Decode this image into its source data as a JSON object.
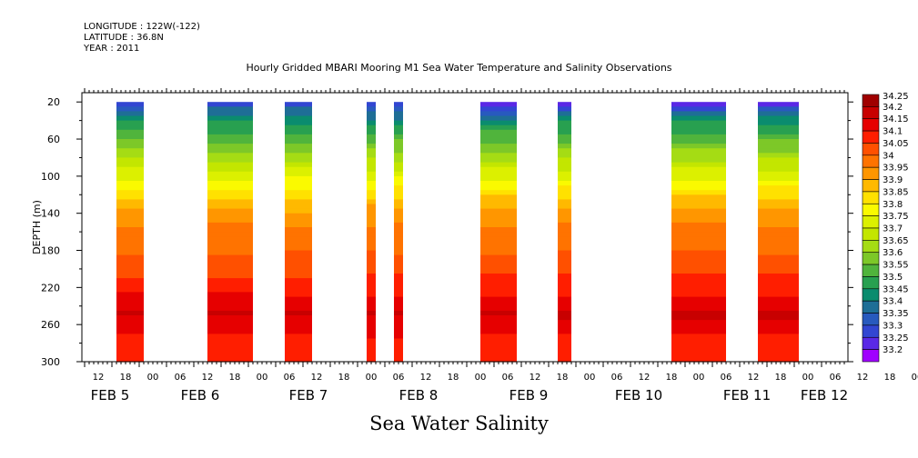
{
  "header": {
    "longitude": "LONGITUDE : 122W(-122)",
    "latitude": "LATITUDE : 36.8N",
    "year": "YEAR : 2011"
  },
  "footer": {
    "variable_title": "Sea Water Salinity"
  },
  "chart_data": {
    "type": "heatmap",
    "title": "Hourly Gridded MBARI Mooring M1 Sea Water Temperature and Salinity Observations",
    "xlabel": "",
    "ylabel": "DEPTH (m)",
    "ylim": [
      300,
      10
    ],
    "yticks": [
      20,
      60,
      100,
      140,
      180,
      220,
      260,
      300
    ],
    "x_hour_ticks": [
      "12",
      "18",
      "00",
      "06",
      "12",
      "18",
      "00",
      "06",
      "12",
      "18",
      "00",
      "06",
      "12",
      "18",
      "00",
      "06",
      "12",
      "18",
      "00",
      "06",
      "12",
      "18",
      "00",
      "06",
      "12",
      "18",
      "00",
      "06",
      "12",
      "18",
      "00",
      "06"
    ],
    "x_date_labels": [
      "FEB  5",
      "FEB  6",
      "FEB  7",
      "FEB  8",
      "FEB  9",
      "FEB 10",
      "FEB 11",
      "FEB 12"
    ],
    "colorbar_levels": [
      "34.25",
      "34.2",
      "34.15",
      "34.1",
      "34.05",
      "34",
      "33.95",
      "33.9",
      "33.85",
      "33.8",
      "33.75",
      "33.7",
      "33.65",
      "33.6",
      "33.55",
      "33.5",
      "33.45",
      "33.4",
      "33.35",
      "33.3",
      "33.25",
      "33.2"
    ],
    "colorbar_colors": [
      "#a00000",
      "#c80000",
      "#e60000",
      "#ff1e00",
      "#ff5000",
      "#ff7300",
      "#ff9600",
      "#ffb900",
      "#ffe100",
      "#fafa00",
      "#dcf000",
      "#c3e600",
      "#a5dc14",
      "#7dc828",
      "#50b43c",
      "#28a050",
      "#0a8c6e",
      "#1e6e96",
      "#285abe",
      "#3246d2",
      "#5a28e6",
      "#a000ff"
    ],
    "data_segments": [
      {
        "start": "Feb 5 16:00",
        "end": "Feb 5 22:00"
      },
      {
        "start": "Feb 6 12:00",
        "end": "Feb 6 22:00"
      },
      {
        "start": "Feb 7 05:00",
        "end": "Feb 7 11:00"
      },
      {
        "start": "Feb 7 23:00",
        "end": "Feb 8 01:00"
      },
      {
        "start": "Feb 8 05:00",
        "end": "Feb 8 07:00"
      },
      {
        "start": "Feb 9 00:00",
        "end": "Feb 9 08:00"
      },
      {
        "start": "Feb 9 17:00",
        "end": "Feb 9 20:00"
      },
      {
        "start": "Feb 10 18:00",
        "end": "Feb 11 06:00"
      },
      {
        "start": "Feb 11 13:00",
        "end": "Feb 11 22:00"
      }
    ],
    "salinity_profile": [
      {
        "depth": 20,
        "value": 33.25
      },
      {
        "depth": 30,
        "value": 33.4
      },
      {
        "depth": 40,
        "value": 33.48
      },
      {
        "depth": 50,
        "value": 33.53
      },
      {
        "depth": 60,
        "value": 33.58
      },
      {
        "depth": 70,
        "value": 33.63
      },
      {
        "depth": 80,
        "value": 33.68
      },
      {
        "depth": 90,
        "value": 33.73
      },
      {
        "depth": 100,
        "value": 33.78
      },
      {
        "depth": 110,
        "value": 33.83
      },
      {
        "depth": 120,
        "value": 33.88
      },
      {
        "depth": 130,
        "value": 33.93
      },
      {
        "depth": 140,
        "value": 33.97
      },
      {
        "depth": 160,
        "value": 34.02
      },
      {
        "depth": 190,
        "value": 34.06
      },
      {
        "depth": 210,
        "value": 34.11
      },
      {
        "depth": 230,
        "value": 34.16
      },
      {
        "depth": 250,
        "value": 34.21
      },
      {
        "depth": 262,
        "value": 34.17
      },
      {
        "depth": 280,
        "value": 34.13
      },
      {
        "depth": 300,
        "value": 34.1
      }
    ]
  }
}
